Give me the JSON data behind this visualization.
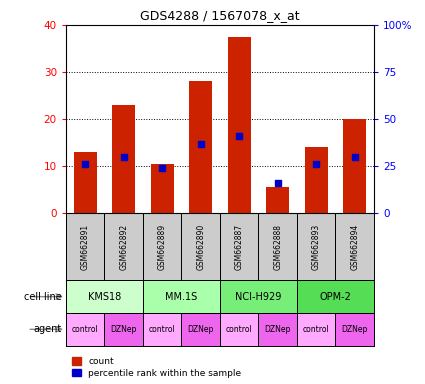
{
  "title": "GDS4288 / 1567078_x_at",
  "samples": [
    "GSM662891",
    "GSM662892",
    "GSM662889",
    "GSM662890",
    "GSM662887",
    "GSM662888",
    "GSM662893",
    "GSM662894"
  ],
  "count_values": [
    13,
    23,
    10.5,
    28,
    37.5,
    5.5,
    14,
    20
  ],
  "percentile_values": [
    26,
    30,
    24,
    37,
    41,
    16,
    26,
    30
  ],
  "cell_lines": [
    {
      "name": "KMS18",
      "start": 0,
      "end": 2
    },
    {
      "name": "MM.1S",
      "start": 2,
      "end": 4
    },
    {
      "name": "NCI-H929",
      "start": 4,
      "end": 6
    },
    {
      "name": "OPM-2",
      "start": 6,
      "end": 8
    }
  ],
  "agents": [
    "control",
    "DZNep",
    "control",
    "DZNep",
    "control",
    "DZNep",
    "control",
    "DZNep"
  ],
  "ylim_left": [
    0,
    40
  ],
  "ylim_right": [
    0,
    100
  ],
  "yticks_left": [
    0,
    10,
    20,
    30,
    40
  ],
  "yticks_right": [
    0,
    25,
    50,
    75,
    100
  ],
  "bar_color": "#cc2200",
  "dot_color": "#0000cc",
  "sample_row_color": "#cccccc",
  "cell_line_colors": [
    "#ccffcc",
    "#aaffaa",
    "#77ee77",
    "#55dd55"
  ],
  "agent_color_control": "#ffaaff",
  "agent_color_DZNep": "#ee66ee"
}
